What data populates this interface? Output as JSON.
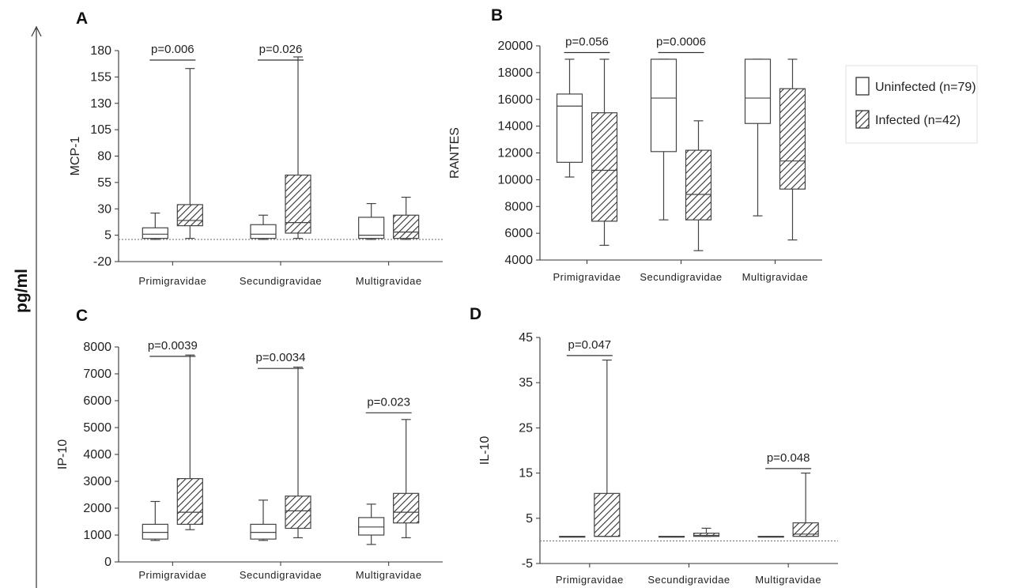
{
  "figure": {
    "y_unit_label": "pg/ml"
  },
  "legend": {
    "items": [
      {
        "label": "Uninfected (n=79)",
        "fill": "#ffffff"
      },
      {
        "label": "Infected (n=42)",
        "fill": "hatch"
      }
    ]
  },
  "colors": {
    "line": "#333333",
    "hatch": "#333333",
    "background": "#ffffff"
  },
  "chart_data": [
    {
      "type": "box",
      "panel_label": "A",
      "ylabel": "MCP-1",
      "ylim": [
        -20,
        180
      ],
      "yticks": [
        -20,
        5,
        30,
        55,
        80,
        105,
        130,
        155,
        180
      ],
      "reference_line": 1,
      "categories": [
        "Primigravidae",
        "Secundigravidae",
        "Multigravidae"
      ],
      "series": [
        {
          "name": "Uninfected (n=79)",
          "boxes": [
            {
              "min": 1,
              "q1": 2,
              "median": 6,
              "q3": 12,
              "max": 26
            },
            {
              "min": 1,
              "q1": 2,
              "median": 6,
              "q3": 15,
              "max": 24
            },
            {
              "min": 1,
              "q1": 2,
              "median": 5,
              "q3": 22,
              "max": 35
            }
          ]
        },
        {
          "name": "Infected (n=42)",
          "boxes": [
            {
              "min": 2,
              "q1": 14,
              "median": 19,
              "q3": 34,
              "max": 163
            },
            {
              "min": 2,
              "q1": 7,
              "median": 17,
              "q3": 62,
              "max": 174
            },
            {
              "min": 1,
              "q1": 2,
              "median": 8,
              "q3": 24,
              "max": 41
            }
          ]
        }
      ],
      "annotations": [
        {
          "text": "p=0.006",
          "category_index": 0,
          "y": 171
        },
        {
          "text": "p=0.026",
          "category_index": 1,
          "y": 171
        }
      ]
    },
    {
      "type": "box",
      "panel_label": "B",
      "ylabel": "RANTES",
      "ylim": [
        4000,
        20000
      ],
      "yticks": [
        4000,
        6000,
        8000,
        10000,
        12000,
        14000,
        16000,
        18000,
        20000
      ],
      "categories": [
        "Primigravidae",
        "Secundigravidae",
        "Multigravidae"
      ],
      "series": [
        {
          "name": "Uninfected (n=79)",
          "boxes": [
            {
              "min": 10200,
              "q1": 11300,
              "median": 15500,
              "q3": 16400,
              "max": 19000
            },
            {
              "min": 7000,
              "q1": 12100,
              "median": 16100,
              "q3": 19000,
              "max": 19000
            },
            {
              "min": 7300,
              "q1": 14200,
              "median": 16100,
              "q3": 19000,
              "max": 19000
            }
          ]
        },
        {
          "name": "Infected (n=42)",
          "boxes": [
            {
              "min": 5100,
              "q1": 6900,
              "median": 10700,
              "q3": 15000,
              "max": 19000
            },
            {
              "min": 4700,
              "q1": 7000,
              "median": 8900,
              "q3": 12200,
              "max": 14400
            },
            {
              "min": 5500,
              "q1": 9300,
              "median": 11400,
              "q3": 16800,
              "max": 19000
            }
          ]
        }
      ],
      "annotations": [
        {
          "text": "p=0.056",
          "category_index": 0,
          "y": 19500
        },
        {
          "text": "p=0.0006",
          "category_index": 1,
          "y": 19500
        }
      ]
    },
    {
      "type": "box",
      "panel_label": "C",
      "ylabel": "IP-10",
      "ylim": [
        0,
        8000
      ],
      "yticks": [
        0,
        1000,
        2000,
        3000,
        4000,
        5000,
        6000,
        7000,
        8000
      ],
      "categories": [
        "Primigravidae",
        "Secundigravidae",
        "Multigravidae"
      ],
      "series": [
        {
          "name": "Uninfected (n=79)",
          "boxes": [
            {
              "min": 800,
              "q1": 850,
              "median": 1100,
              "q3": 1400,
              "max": 2250
            },
            {
              "min": 800,
              "q1": 850,
              "median": 1100,
              "q3": 1400,
              "max": 2300
            },
            {
              "min": 650,
              "q1": 1000,
              "median": 1300,
              "q3": 1650,
              "max": 2150
            }
          ]
        },
        {
          "name": "Infected (n=42)",
          "boxes": [
            {
              "min": 1200,
              "q1": 1400,
              "median": 1850,
              "q3": 3100,
              "max": 7700
            },
            {
              "min": 900,
              "q1": 1250,
              "median": 1900,
              "q3": 2450,
              "max": 7250
            },
            {
              "min": 900,
              "q1": 1450,
              "median": 1850,
              "q3": 2550,
              "max": 5300
            }
          ]
        }
      ],
      "annotations": [
        {
          "text": "p=0.0039",
          "category_index": 0,
          "y": 7650
        },
        {
          "text": "p=0.0034",
          "category_index": 1,
          "y": 7200
        },
        {
          "text": "p=0.023",
          "category_index": 2,
          "y": 5550
        }
      ]
    },
    {
      "type": "box",
      "panel_label": "D",
      "ylabel": "IL-10",
      "ylim": [
        -5,
        45
      ],
      "yticks": [
        -5,
        5,
        15,
        25,
        35,
        45
      ],
      "reference_line": 0,
      "categories": [
        "Primigravidae",
        "Secundigravidae",
        "Multigravidae"
      ],
      "series": [
        {
          "name": "Uninfected (n=79)",
          "boxes": [
            {
              "min": 1,
              "q1": 1,
              "median": 1,
              "q3": 1,
              "max": 1
            },
            {
              "min": 1,
              "q1": 1,
              "median": 1,
              "q3": 1,
              "max": 1
            },
            {
              "min": 1,
              "q1": 1,
              "median": 1,
              "q3": 1,
              "max": 1
            }
          ]
        },
        {
          "name": "Infected (n=42)",
          "boxes": [
            {
              "min": 1,
              "q1": 1,
              "median": 1,
              "q3": 10.5,
              "max": 40
            },
            {
              "min": 1,
              "q1": 1,
              "median": 1.2,
              "q3": 1.7,
              "max": 2.8
            },
            {
              "min": 1,
              "q1": 1,
              "median": 1.5,
              "q3": 4,
              "max": 15
            }
          ]
        }
      ],
      "annotations": [
        {
          "text": "p=0.047",
          "category_index": 0,
          "y": 41
        },
        {
          "text": "p=0.048",
          "category_index": 2,
          "y": 16
        }
      ]
    }
  ]
}
